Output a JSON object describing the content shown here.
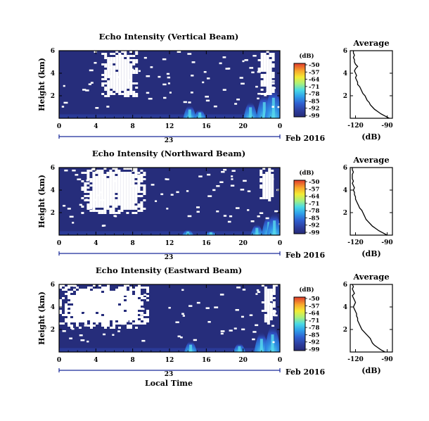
{
  "chart_data": [
    {
      "type": "heatmap",
      "title": "Echo Intensity (Vertical Beam)",
      "ylabel": "Height (km)",
      "yticks": [
        "2",
        "4",
        "6"
      ],
      "ylim": [
        0,
        6
      ],
      "xticks": [
        "0",
        "4",
        "8",
        "12",
        "16",
        "20",
        "0"
      ],
      "xlim": [
        0,
        24
      ],
      "date_day": "23",
      "date_month": "Feb 2016",
      "colorbar_unit": "(dB)",
      "colorbar_ticks": [
        "-50",
        "-57",
        "-64",
        "-71",
        "-78",
        "-85",
        "-92",
        "-99"
      ],
      "gap_regions": [
        {
          "x": [
            4.6,
            8.4
          ],
          "y": [
            2.0,
            6.0
          ]
        },
        {
          "x": [
            21.6,
            23.3
          ],
          "y": [
            2.2,
            6.0
          ]
        }
      ],
      "echo_hotspots": [
        {
          "x": 14.2,
          "h": 1.2
        },
        {
          "x": 15.3,
          "h": 0.8
        },
        {
          "x": 20.8,
          "h": 1.5
        },
        {
          "x": 22.3,
          "h": 2.2
        },
        {
          "x": 23.3,
          "h": 2.8
        }
      ],
      "average_profile": {
        "title": "Average",
        "xlabel": "(dB)",
        "xticks": [
          "-120",
          "-90"
        ],
        "xlim": [
          -125,
          -85
        ],
        "yticks": [
          "2",
          "4",
          "6"
        ],
        "ylim": [
          0,
          6
        ],
        "heights": [
          0.0,
          0.2,
          0.4,
          0.6,
          0.8,
          1.0,
          1.2,
          1.4,
          1.6,
          1.8,
          2.0,
          2.2,
          2.4,
          2.6,
          2.8,
          3.0,
          3.2,
          3.4,
          3.6,
          3.8,
          4.0,
          4.2,
          4.4,
          4.6,
          4.8,
          5.0,
          5.2,
          5.4,
          5.6,
          5.8,
          6.0
        ],
        "values": [
          -88,
          -92,
          -96,
          -99,
          -102,
          -104,
          -106,
          -107,
          -109,
          -110,
          -111,
          -113,
          -114,
          -115,
          -116,
          -118,
          -118,
          -119,
          -120,
          -119,
          -120,
          -121,
          -120,
          -118,
          -120,
          -121,
          -121,
          -122,
          -121,
          -122,
          -122
        ]
      }
    },
    {
      "type": "heatmap",
      "title": "Echo Intensity (Northward Beam)",
      "ylabel": "Height (km)",
      "yticks": [
        "2",
        "4",
        "6"
      ],
      "ylim": [
        0,
        6
      ],
      "xticks": [
        "0",
        "4",
        "8",
        "12",
        "16",
        "20",
        "0"
      ],
      "xlim": [
        0,
        24
      ],
      "date_day": "23",
      "date_month": "Feb 2016",
      "colorbar_unit": "(dB)",
      "colorbar_ticks": [
        "-50",
        "-57",
        "-64",
        "-71",
        "-78",
        "-85",
        "-92",
        "-99"
      ],
      "gap_regions": [
        {
          "x": [
            2.4,
            9.4
          ],
          "y": [
            2.0,
            6.0
          ]
        },
        {
          "x": [
            21.8,
            23.3
          ],
          "y": [
            3.0,
            6.0
          ]
        }
      ],
      "echo_hotspots": [
        {
          "x": 14.0,
          "h": 0.5
        },
        {
          "x": 16.5,
          "h": 0.4
        },
        {
          "x": 21.5,
          "h": 1.0
        },
        {
          "x": 22.8,
          "h": 1.8
        },
        {
          "x": 23.4,
          "h": 2.0
        }
      ],
      "average_profile": {
        "title": "Average",
        "xlabel": "(dB)",
        "xticks": [
          "-120",
          "-90"
        ],
        "xlim": [
          -125,
          -85
        ],
        "yticks": [
          "2",
          "4",
          "6"
        ],
        "ylim": [
          0,
          6
        ],
        "heights": [
          0.0,
          0.2,
          0.4,
          0.6,
          0.8,
          1.0,
          1.2,
          1.4,
          1.6,
          1.8,
          2.0,
          2.2,
          2.4,
          2.6,
          2.8,
          3.0,
          3.2,
          3.4,
          3.6,
          3.8,
          4.0,
          4.2,
          4.4,
          4.6,
          4.8,
          5.0,
          5.2,
          5.4,
          5.6,
          5.8,
          6.0
        ],
        "values": [
          -90,
          -94,
          -98,
          -101,
          -104,
          -106,
          -108,
          -110,
          -111,
          -112,
          -113,
          -114,
          -116,
          -117,
          -118,
          -119,
          -120,
          -120,
          -121,
          -121,
          -122,
          -121,
          -122,
          -123,
          -122,
          -123,
          -123,
          -123,
          -122,
          -123,
          -123
        ]
      }
    },
    {
      "type": "heatmap",
      "title": "Echo Intensity (Eastward Beam)",
      "ylabel": "Height (km)",
      "yticks": [
        "2",
        "4",
        "6"
      ],
      "ylim": [
        0,
        6
      ],
      "xticks": [
        "0",
        "4",
        "8",
        "12",
        "16",
        "20",
        "0"
      ],
      "xlim": [
        0,
        24
      ],
      "date_day": "23",
      "date_month": "Feb 2016",
      "colorbar_unit": "(dB)",
      "colorbar_ticks": [
        "-50",
        "-57",
        "-64",
        "-71",
        "-78",
        "-85",
        "-92",
        "-99"
      ],
      "xlabel": "Local Time",
      "gap_regions": [
        {
          "x": [
            0.0,
            9.6
          ],
          "y": [
            2.2,
            6.0
          ]
        },
        {
          "x": [
            22.0,
            23.4
          ],
          "y": [
            2.5,
            6.0
          ]
        }
      ],
      "echo_hotspots": [
        {
          "x": 14.3,
          "h": 1.0
        },
        {
          "x": 19.6,
          "h": 0.8
        },
        {
          "x": 22.0,
          "h": 1.8
        },
        {
          "x": 23.2,
          "h": 2.4
        }
      ],
      "average_profile": {
        "title": "Average",
        "xlabel": "(dB)",
        "xticks": [
          "-120",
          "-90"
        ],
        "xlim": [
          -125,
          -85
        ],
        "yticks": [
          "2",
          "4",
          "6"
        ],
        "ylim": [
          0,
          6
        ],
        "heights": [
          0.0,
          0.2,
          0.4,
          0.6,
          0.8,
          1.0,
          1.2,
          1.4,
          1.6,
          1.8,
          2.0,
          2.2,
          2.4,
          2.6,
          2.8,
          3.0,
          3.2,
          3.4,
          3.6,
          3.8,
          4.0,
          4.2,
          4.4,
          4.6,
          4.8,
          5.0,
          5.2,
          5.4,
          5.6,
          5.8,
          6.0
        ],
        "values": [
          -92,
          -96,
          -99,
          -102,
          -104,
          -105,
          -106,
          -108,
          -110,
          -112,
          -114,
          -115,
          -116,
          -117,
          -118,
          -118,
          -119,
          -119,
          -120,
          -121,
          -122,
          -121,
          -120,
          -121,
          -122,
          -123,
          -121,
          -122,
          -123,
          -122,
          -123
        ]
      }
    }
  ],
  "colors": {
    "background_echo": "#262d7b",
    "axis": "#000000",
    "date_axis": "#1a2a9a",
    "colorbar": [
      "#2a2d80",
      "#2f4ab8",
      "#2f7fe0",
      "#36c3ee",
      "#6fe7c8",
      "#c5f04a",
      "#f8e22c",
      "#f7a02b",
      "#ef5a28",
      "#d83030"
    ]
  }
}
